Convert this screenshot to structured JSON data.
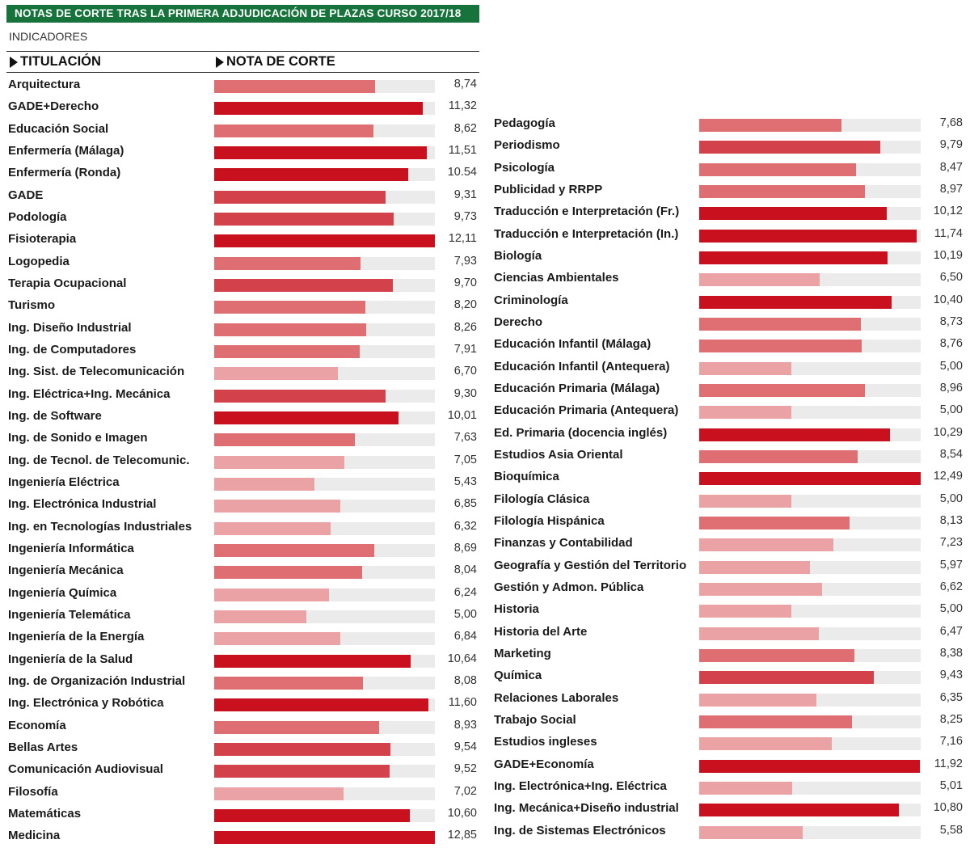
{
  "header": {
    "title": "NOTAS DE CORTE TRAS LA PRIMERA ADJUDICACIÓN DE PLAZAS CURSO 2017/18",
    "subtitle": "INDICADORES",
    "col_titulacion": "TITULACIÓN",
    "col_nota": "NOTA DE CORTE"
  },
  "colors": {
    "banner": "#16733b",
    "track": "#ebebeb",
    "bar_high": "#c8101e",
    "bar_mid_high": "#d3414a",
    "bar_mid": "#df6e73",
    "bar_low": "#eba2a5"
  },
  "chart_data": {
    "type": "bar",
    "orientation": "horizontal",
    "title": "NOTAS DE CORTE TRAS LA PRIMERA ADJUDICACIÓN DE PLAZAS CURSO 2017/18",
    "xlabel": "NOTA DE CORTE",
    "ylabel": "TITULACIÓN",
    "xlim": [
      0,
      14
    ],
    "grid": false,
    "columns": [
      {
        "rows": [
          {
            "label": "Arquitectura",
            "value": 8.74,
            "display": "8,74"
          },
          {
            "label": "GADE+Derecho",
            "value": 11.32,
            "display": "11,32"
          },
          {
            "label": "Educación Social",
            "value": 8.62,
            "display": "8,62"
          },
          {
            "label": "Enfermería (Málaga)",
            "value": 11.51,
            "display": "11,51"
          },
          {
            "label": "Enfermería (Ronda)",
            "value": 10.54,
            "display": "10.54"
          },
          {
            "label": "GADE",
            "value": 9.31,
            "display": "9,31"
          },
          {
            "label": "Podología",
            "value": 9.73,
            "display": "9,73"
          },
          {
            "label": "Fisioterapia",
            "value": 12.11,
            "display": "12,11"
          },
          {
            "label": "Logopedia",
            "value": 7.93,
            "display": "7,93"
          },
          {
            "label": "Terapia Ocupacional",
            "value": 9.7,
            "display": "9,70"
          },
          {
            "label": "Turismo",
            "value": 8.2,
            "display": "8,20"
          },
          {
            "label": "Ing. Diseño Industrial",
            "value": 8.26,
            "display": "8,26"
          },
          {
            "label": "Ing. de Computadores",
            "value": 7.91,
            "display": "7,91"
          },
          {
            "label": "Ing. Sist. de Telecomunicación",
            "value": 6.7,
            "display": "6,70"
          },
          {
            "label": "Ing. Eléctrica+Ing. Mecánica",
            "value": 9.3,
            "display": "9,30"
          },
          {
            "label": "Ing. de Software",
            "value": 10.01,
            "display": "10,01"
          },
          {
            "label": "Ing. de Sonido e Imagen",
            "value": 7.63,
            "display": "7,63"
          },
          {
            "label": "Ing. de Tecnol. de Telecomunic.",
            "value": 7.05,
            "display": "7,05"
          },
          {
            "label": "Ingeniería Eléctrica",
            "value": 5.43,
            "display": "5,43"
          },
          {
            "label": "Ing. Electrónica Industrial",
            "value": 6.85,
            "display": "6,85"
          },
          {
            "label": "Ing. en Tecnologías Industriales",
            "value": 6.32,
            "display": "6,32"
          },
          {
            "label": "Ingeniería Informática",
            "value": 8.69,
            "display": "8,69"
          },
          {
            "label": "Ingeniería Mecánica",
            "value": 8.04,
            "display": "8,04"
          },
          {
            "label": "Ingeniería Química",
            "value": 6.24,
            "display": "6,24"
          },
          {
            "label": "Ingeniería Telemática",
            "value": 5.0,
            "display": "5,00"
          },
          {
            "label": "Ingeniería de la Energía",
            "value": 6.84,
            "display": "6,84"
          },
          {
            "label": "Ingeniería de la Salud",
            "value": 10.64,
            "display": "10,64"
          },
          {
            "label": "Ing. de Organización Industrial",
            "value": 8.08,
            "display": "8,08"
          },
          {
            "label": "Ing. Electrónica y Robótica",
            "value": 11.6,
            "display": "11,60"
          },
          {
            "label": "Economía",
            "value": 8.93,
            "display": "8,93"
          },
          {
            "label": "Bellas Artes",
            "value": 9.54,
            "display": "9,54"
          },
          {
            "label": "Comunicación Audiovisual",
            "value": 9.52,
            "display": "9,52"
          },
          {
            "label": "Filosofía",
            "value": 7.02,
            "display": "7,02"
          },
          {
            "label": "Matemáticas",
            "value": 10.6,
            "display": "10,60"
          },
          {
            "label": "Medicina",
            "value": 12.85,
            "display": "12,85"
          }
        ]
      },
      {
        "rows": [
          {
            "label": "Pedagogía",
            "value": 7.68,
            "display": "7,68"
          },
          {
            "label": "Periodismo",
            "value": 9.79,
            "display": "9,79"
          },
          {
            "label": "Psicología",
            "value": 8.47,
            "display": "8,47"
          },
          {
            "label": "Publicidad y RRPP",
            "value": 8.97,
            "display": "8,97"
          },
          {
            "label": "Traducción e Interpretación (Fr.)",
            "value": 10.12,
            "display": "10,12"
          },
          {
            "label": "Traducción e Interpretación (In.)",
            "value": 11.74,
            "display": "11,74"
          },
          {
            "label": "Biología",
            "value": 10.19,
            "display": "10,19"
          },
          {
            "label": "Ciencias Ambientales",
            "value": 6.5,
            "display": "6,50"
          },
          {
            "label": "Criminología",
            "value": 10.4,
            "display": "10,40"
          },
          {
            "label": "Derecho",
            "value": 8.73,
            "display": "8,73"
          },
          {
            "label": "Educación Infantil (Málaga)",
            "value": 8.76,
            "display": "8,76"
          },
          {
            "label": "Educación Infantil (Antequera)",
            "value": 5.0,
            "display": "5,00"
          },
          {
            "label": "Educación Primaria (Málaga)",
            "value": 8.96,
            "display": "8,96"
          },
          {
            "label": "Educación Primaria (Antequera)",
            "value": 5.0,
            "display": "5,00"
          },
          {
            "label": "Ed. Primaria (docencia inglés)",
            "value": 10.29,
            "display": "10,29"
          },
          {
            "label": "Estudios Asia Oriental",
            "value": 8.54,
            "display": "8,54"
          },
          {
            "label": "Bioquímica",
            "value": 12.49,
            "display": "12,49"
          },
          {
            "label": "Filología Clásica",
            "value": 5.0,
            "display": "5,00"
          },
          {
            "label": "Filología Hispánica",
            "value": 8.13,
            "display": "8,13"
          },
          {
            "label": "Finanzas y Contabilidad",
            "value": 7.23,
            "display": "7,23"
          },
          {
            "label": "Geografía y Gestión del Territorio",
            "value": 5.97,
            "display": "5,97"
          },
          {
            "label": "Gestión y Admon. Pública",
            "value": 6.62,
            "display": "6,62"
          },
          {
            "label": "Historia",
            "value": 5.0,
            "display": "5,00"
          },
          {
            "label": "Historia del Arte",
            "value": 6.47,
            "display": "6,47"
          },
          {
            "label": "Marketing",
            "value": 8.38,
            "display": "8,38"
          },
          {
            "label": "Química",
            "value": 9.43,
            "display": "9,43"
          },
          {
            "label": "Relaciones Laborales",
            "value": 6.35,
            "display": "6,35"
          },
          {
            "label": "Trabajo Social",
            "value": 8.25,
            "display": "8,25"
          },
          {
            "label": "Estudios ingleses",
            "value": 7.16,
            "display": "7,16"
          },
          {
            "label": "GADE+Economía",
            "value": 11.92,
            "display": "11,92"
          },
          {
            "label": "Ing. Electrónica+Ing. Eléctrica",
            "value": 5.01,
            "display": "5,01"
          },
          {
            "label": "Ing. Mecánica+Diseño industrial",
            "value": 10.8,
            "display": "10,80"
          },
          {
            "label": "Ing. de Sistemas Electrónicos",
            "value": 5.58,
            "display": "5,58"
          }
        ]
      }
    ]
  }
}
